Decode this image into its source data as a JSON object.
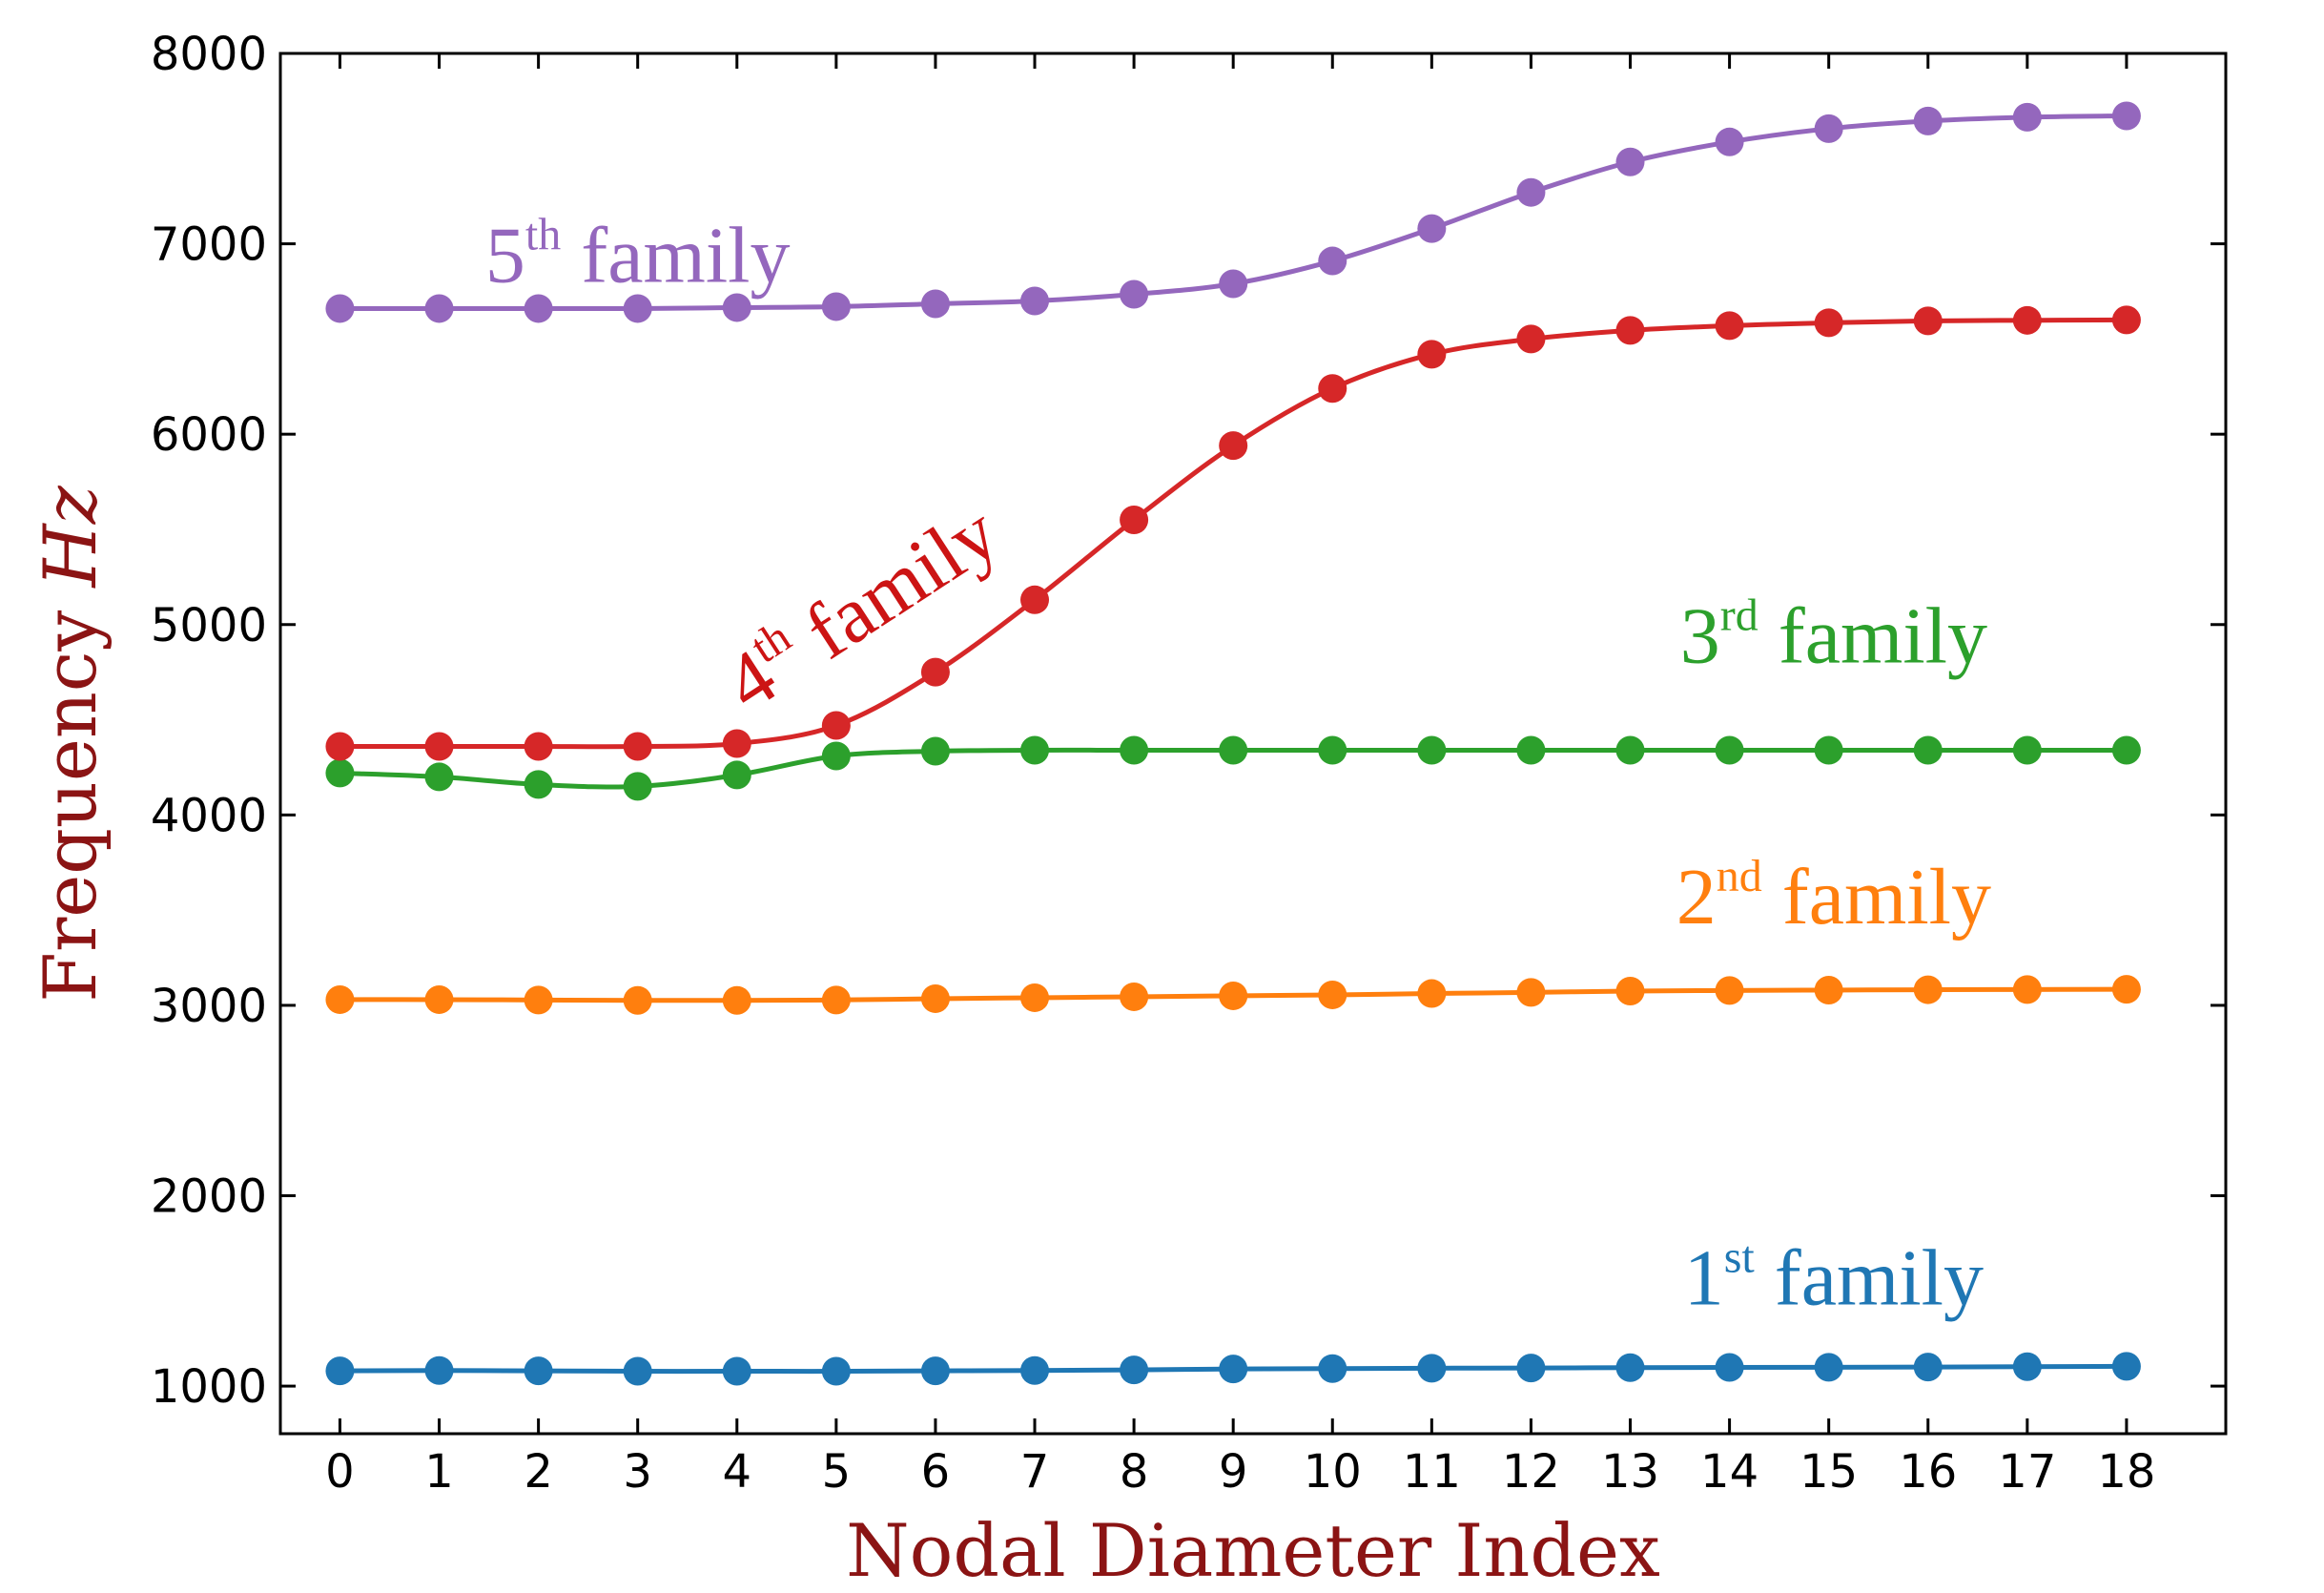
{
  "chart_data": {
    "type": "line",
    "title": "",
    "xlabel": "Nodal Diameter Index",
    "ylabel": {
      "prefix": "Frequency ",
      "unit": "Hz"
    },
    "xlim": [
      -0.6,
      19.0
    ],
    "ylim": [
      750,
      8000
    ],
    "x": [
      0,
      1,
      2,
      3,
      4,
      5,
      6,
      7,
      8,
      9,
      10,
      11,
      12,
      13,
      14,
      15,
      16,
      17,
      18
    ],
    "xticks": [
      "0",
      "1",
      "2",
      "3",
      "4",
      "5",
      "6",
      "7",
      "8",
      "9",
      "10",
      "11",
      "12",
      "13",
      "14",
      "15",
      "16",
      "17",
      "18"
    ],
    "yticks": [
      1000,
      2000,
      3000,
      4000,
      5000,
      6000,
      7000,
      8000
    ],
    "grid": false,
    "series": [
      {
        "name": "1st family",
        "color": "#1f77b4",
        "values": [
          1080,
          1082,
          1080,
          1078,
          1078,
          1078,
          1080,
          1082,
          1085,
          1090,
          1092,
          1094,
          1095,
          1097,
          1098,
          1099,
          1100,
          1102,
          1104
        ]
      },
      {
        "name": "2nd family",
        "color": "#ff7f0e",
        "values": [
          3030,
          3030,
          3028,
          3026,
          3026,
          3028,
          3035,
          3040,
          3045,
          3050,
          3055,
          3062,
          3068,
          3075,
          3078,
          3080,
          3082,
          3083,
          3084
        ]
      },
      {
        "name": "3rd family",
        "color": "#2ca02c",
        "values": [
          4220,
          4200,
          4160,
          4150,
          4210,
          4310,
          4335,
          4340,
          4340,
          4340,
          4340,
          4340,
          4340,
          4340,
          4340,
          4340,
          4340,
          4340,
          4340
        ]
      },
      {
        "name": "4th family",
        "color": "#d62728",
        "values": [
          4360,
          4360,
          4360,
          4360,
          4375,
          4470,
          4750,
          5130,
          5550,
          5940,
          6240,
          6420,
          6500,
          6545,
          6570,
          6585,
          6595,
          6598,
          6600
        ]
      },
      {
        "name": "5th family",
        "color": "#9467bd",
        "values": [
          6660,
          6660,
          6660,
          6660,
          6665,
          6670,
          6685,
          6700,
          6735,
          6790,
          6910,
          7080,
          7270,
          7430,
          7535,
          7605,
          7645,
          7665,
          7672
        ]
      }
    ],
    "annotations": [
      {
        "series": "1st family",
        "num": "1",
        "sup": "st",
        "rest": " family",
        "color": "#1f77b4",
        "x": 15.05,
        "y": 1430,
        "rotation": 0
      },
      {
        "series": "2nd family",
        "num": "2",
        "sup": "nd",
        "rest": " family",
        "color": "#ff7f0e",
        "x": 15.05,
        "y": 3430,
        "rotation": 0
      },
      {
        "series": "3rd family",
        "num": "3",
        "sup": "rd",
        "rest": " family",
        "color": "#2ca02c",
        "x": 15.05,
        "y": 4800,
        "rotation": 0
      },
      {
        "series": "4th family",
        "num": "4",
        "sup": "th",
        "rest": " family",
        "color": "#cc1414",
        "x": 5.4,
        "y": 4970,
        "rotation": -33
      },
      {
        "series": "5th family",
        "num": "5",
        "sup": "th",
        "rest": " family",
        "color": "#9467bd",
        "x": 3.0,
        "y": 6800,
        "rotation": 0
      }
    ]
  }
}
